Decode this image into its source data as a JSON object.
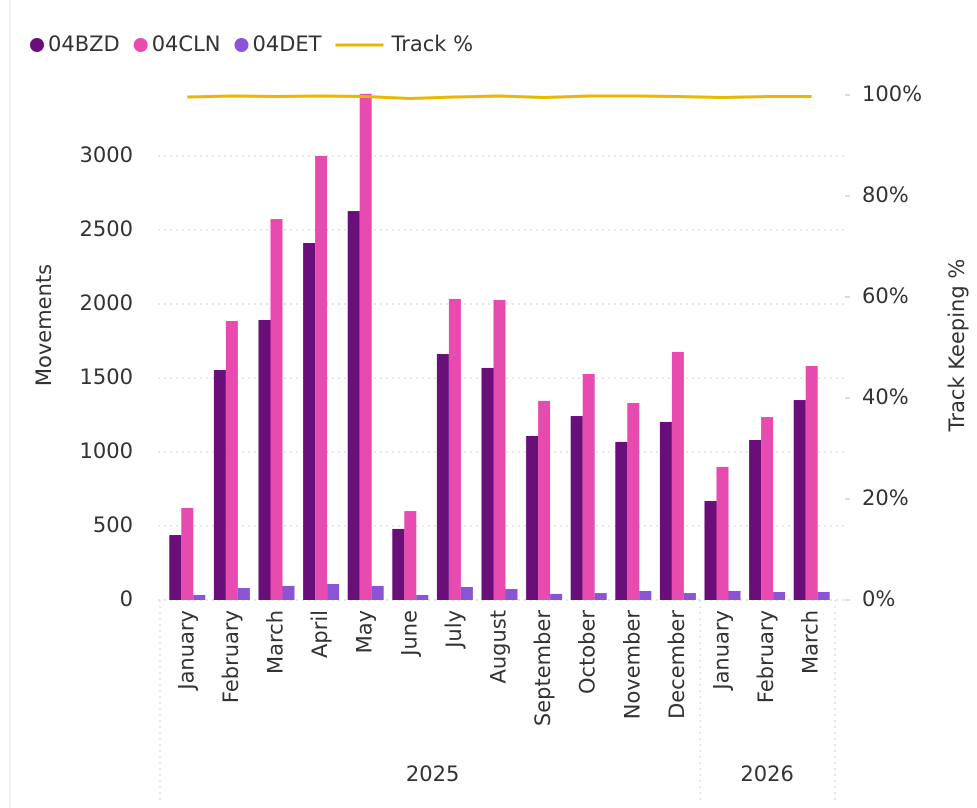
{
  "chart_data": {
    "type": "bar",
    "legend": "top-left",
    "grid": true,
    "y_label": "Movements",
    "y2_label": "Track Keeping %",
    "groups": [
      {
        "label": "2025",
        "categories": [
          "January",
          "February",
          "March",
          "April",
          "May",
          "June",
          "July",
          "August",
          "September",
          "October",
          "November",
          "December"
        ]
      },
      {
        "label": "2026",
        "categories": [
          "January",
          "February",
          "March"
        ]
      }
    ],
    "ylim": [
      0,
      3412
    ],
    "yticks": [
      0,
      500,
      1000,
      1500,
      2000,
      2500,
      3000
    ],
    "y2lim": [
      0,
      100
    ],
    "y2ticks": [
      {
        "value": 0,
        "label": "0%"
      },
      {
        "value": 20,
        "label": "20%"
      },
      {
        "value": 40,
        "label": "40%"
      },
      {
        "value": 60,
        "label": "60%"
      },
      {
        "value": 80,
        "label": "80%"
      },
      {
        "value": 100,
        "label": "100%"
      }
    ],
    "series": [
      {
        "name": "04BZD",
        "type": "bar",
        "color": "#6a0f7a",
        "values": [
          439,
          1554,
          1892,
          2412,
          2628,
          480,
          1662,
          1568,
          1108,
          1243,
          1068,
          1203,
          669,
          1081,
          1351
        ]
      },
      {
        "name": "04CLN",
        "type": "bar",
        "color": "#e84bb0",
        "values": [
          622,
          1885,
          2574,
          3000,
          3420,
          601,
          2034,
          2027,
          1345,
          1527,
          1331,
          1676,
          899,
          1236,
          1581
        ]
      },
      {
        "name": "04DET",
        "type": "bar",
        "color": "#8a55d4",
        "values": [
          34,
          81,
          95,
          108,
          95,
          34,
          88,
          74,
          41,
          47,
          61,
          47,
          61,
          54,
          54
        ]
      },
      {
        "name": "Track %",
        "type": "line",
        "axis": "y2",
        "color": "#e6b800",
        "values": [
          99.6,
          99.8,
          99.7,
          99.8,
          99.7,
          99.3,
          99.6,
          99.8,
          99.5,
          99.8,
          99.8,
          99.7,
          99.5,
          99.7,
          99.7
        ]
      }
    ]
  }
}
